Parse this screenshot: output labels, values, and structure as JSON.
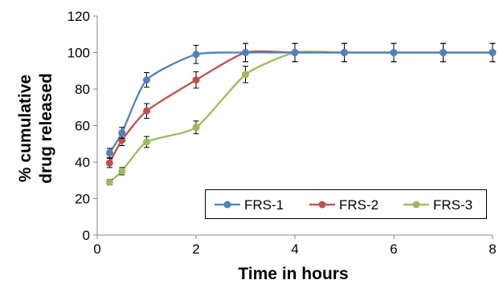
{
  "chart_data": {
    "type": "scatter",
    "xlabel": "Time in hours",
    "ylabel": "% cumulative drug released",
    "ylabel_lines": [
      "% cumulative",
      "drug released"
    ],
    "xlim": [
      0,
      8
    ],
    "ylim": [
      0,
      120
    ],
    "x_ticks": [
      0,
      2,
      4,
      6,
      8
    ],
    "y_ticks": [
      0,
      20,
      40,
      60,
      80,
      100,
      120
    ],
    "grid": false,
    "legend_position": "bottom-right",
    "x": [
      0.25,
      0.5,
      1,
      2,
      3,
      4,
      5,
      6,
      7,
      8
    ],
    "series": [
      {
        "name": "FRS-1",
        "color": "#4f81bd",
        "values": [
          45,
          56,
          85,
          99,
          100,
          100,
          100,
          100,
          100,
          100
        ],
        "error": [
          2.5,
          3,
          4,
          5,
          5,
          5,
          5,
          5,
          5,
          5
        ]
      },
      {
        "name": "FRS-2",
        "color": "#c0504d",
        "values": [
          39.5,
          52,
          68,
          85,
          100,
          100,
          100,
          100,
          100,
          100
        ],
        "error": [
          2.5,
          3,
          4,
          4.5,
          5,
          5,
          5,
          5,
          5,
          5
        ]
      },
      {
        "name": "FRS-3",
        "color": "#9bbb59",
        "values": [
          29,
          35,
          51,
          59,
          88,
          100,
          100,
          100,
          100,
          100
        ],
        "error": [
          1.5,
          2,
          3,
          3.5,
          4.5,
          5,
          5,
          5,
          5,
          5
        ]
      }
    ]
  }
}
